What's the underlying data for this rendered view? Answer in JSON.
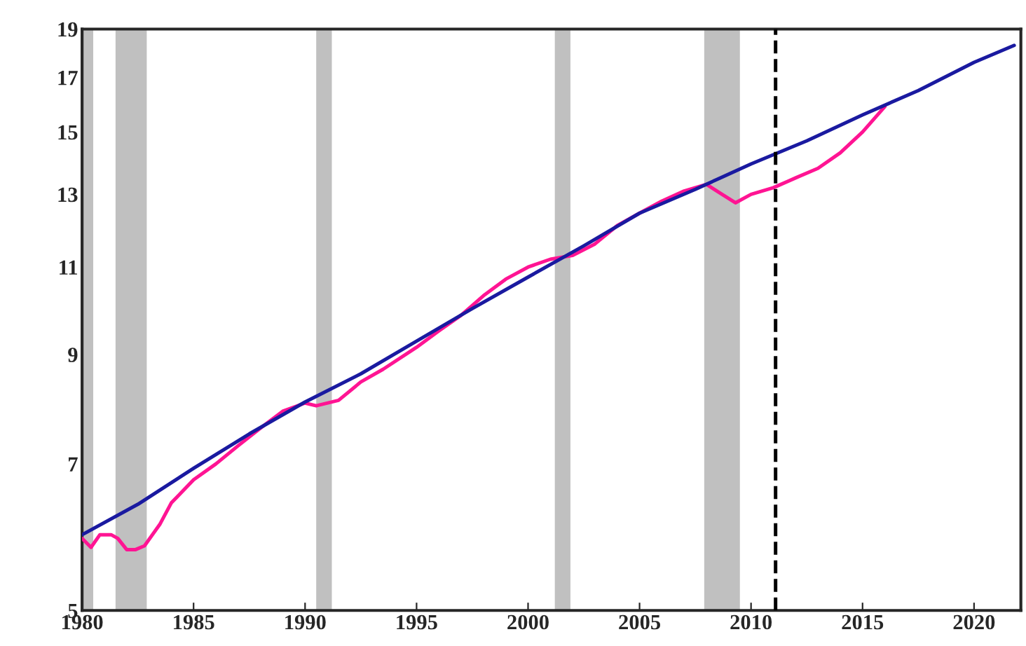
{
  "chart_data": {
    "type": "line",
    "log": "y",
    "xlim": [
      1980,
      2022.1
    ],
    "xticks": [
      1980,
      1985,
      1990,
      1995,
      2000,
      2005,
      2010,
      2015,
      2020
    ],
    "ylim": [
      5,
      19
    ],
    "yticks": [
      5,
      7,
      9,
      11,
      13,
      15,
      17,
      19
    ],
    "grid": false,
    "legend": false,
    "marker": "none",
    "line_style": "solid",
    "series": [
      {
        "color": "#ff1493",
        "x": [
          1980,
          1980.4,
          1980.8,
          1981.3,
          1981.6,
          1982,
          1982.4,
          1982.8,
          1983.5,
          1984,
          1985,
          1986,
          1987,
          1988,
          1989,
          1990,
          1990.5,
          1991.5,
          1992.5,
          1993.5,
          1995,
          1996,
          1997,
          1998,
          1999,
          2000,
          2001,
          2002,
          2003,
          2004,
          2005,
          2006,
          2007,
          2008,
          2008.7,
          2009.3,
          2010,
          2011,
          2012,
          2013,
          2014,
          2015,
          2016
        ],
        "values": [
          5.9,
          5.78,
          5.95,
          5.95,
          5.9,
          5.75,
          5.75,
          5.8,
          6.1,
          6.4,
          6.75,
          7.0,
          7.3,
          7.6,
          7.9,
          8.05,
          8.0,
          8.1,
          8.45,
          8.7,
          9.15,
          9.5,
          9.85,
          10.3,
          10.7,
          11.0,
          11.2,
          11.3,
          11.6,
          12.1,
          12.45,
          12.8,
          13.1,
          13.3,
          13.0,
          12.75,
          13.0,
          13.2,
          13.5,
          13.8,
          14.3,
          15.0,
          15.9
        ]
      },
      {
        "color": "#1a1aa0",
        "x": [
          1980,
          1982.5,
          1985,
          1987.5,
          1990,
          1992.5,
          1995,
          1997.5,
          2000,
          2002.5,
          2005,
          2007.5,
          2010,
          2012.5,
          2015,
          2017.5,
          2020,
          2021.8
        ],
        "values": [
          5.95,
          6.38,
          6.93,
          7.5,
          8.07,
          8.61,
          9.28,
          10.0,
          10.75,
          11.55,
          12.45,
          13.15,
          13.94,
          14.7,
          15.6,
          16.5,
          17.6,
          18.3
        ]
      }
    ],
    "bands": [
      {
        "axis": "x",
        "from": 1980,
        "to": 1980.5,
        "color": "#c0c0c0"
      },
      {
        "axis": "x",
        "from": 1981.5,
        "to": 1982.9,
        "color": "#c0c0c0"
      },
      {
        "axis": "x",
        "from": 1990.5,
        "to": 1991.2,
        "color": "#c0c0c0"
      },
      {
        "axis": "x",
        "from": 2001.2,
        "to": 2001.9,
        "color": "#c0c0c0"
      },
      {
        "axis": "x",
        "from": 2007.9,
        "to": 2009.5,
        "color": "#c0c0c0"
      }
    ],
    "ref_lines": [
      {
        "axis": "x",
        "value": 2011.1,
        "color": "#000000",
        "line_style": "dashed"
      }
    ]
  }
}
